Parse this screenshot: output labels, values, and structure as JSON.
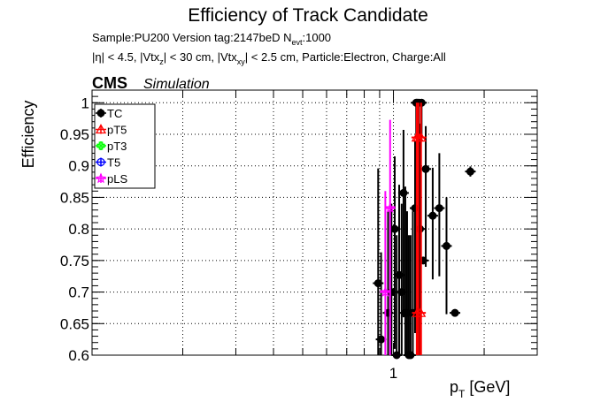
{
  "header": {
    "title": "Efficiency of Track Candidate",
    "subtitle_line1_a": "Sample:PU200   Version tag:2147beD  N",
    "subtitle_line1_sub": "evt",
    "subtitle_line1_b": ":1000",
    "cuts_a": "|η| < 4.5, |Vtx",
    "cuts_sub1": "z",
    "cuts_b": "| < 30 cm, |Vtx",
    "cuts_sub2": "xy",
    "cuts_c": "| < 2.5 cm, Particle:Electron, Charge:All",
    "cms": "CMS",
    "simulation": "Simulation"
  },
  "chart_data": {
    "type": "scatter",
    "xlabel": "p",
    "xlabel_sub": "T",
    "xlabel_unit": " [GeV]",
    "ylabel": "Efficiency",
    "x_scale": "log",
    "xlim": [
      0.1,
      3.0
    ],
    "ylim": [
      0.6,
      1.02
    ],
    "grid": true,
    "legend_position": "top-left",
    "x_tick_labels": [
      {
        "value": 1,
        "label": "1"
      }
    ],
    "y_tick_labels": [
      {
        "value": 0.6,
        "label": "0.6"
      },
      {
        "value": 0.65,
        "label": "0.65"
      },
      {
        "value": 0.7,
        "label": "0.7"
      },
      {
        "value": 0.75,
        "label": "0.75"
      },
      {
        "value": 0.8,
        "label": "0.8"
      },
      {
        "value": 0.85,
        "label": "0.85"
      },
      {
        "value": 0.9,
        "label": "0.9"
      },
      {
        "value": 0.95,
        "label": "0.95"
      },
      {
        "value": 1.0,
        "label": "1"
      }
    ],
    "series": [
      {
        "name": "TC",
        "color": "#000000",
        "marker": "filled-circle",
        "points": [
          {
            "x": 0.89,
            "y": 0.714,
            "yerr_low": 0.114,
            "yerr_high": 0.182
          },
          {
            "x": 0.91,
            "y": 0.625,
            "yerr_low": 0.025,
            "yerr_high": 0.138
          },
          {
            "x": 0.96,
            "y": 0.667,
            "yerr_low": 0.067,
            "yerr_high": 0.161
          },
          {
            "x": 0.985,
            "y": 0.7,
            "yerr_low": 0.1,
            "yerr_high": 0.14
          },
          {
            "x": 1.01,
            "y": 0.8,
            "yerr_low": 0.19,
            "yerr_high": 0.115
          },
          {
            "x": 1.025,
            "y": 0.6,
            "yerr_low": 0.0,
            "yerr_high": 0.19
          },
          {
            "x": 1.045,
            "y": 0.727,
            "yerr_low": 0.127,
            "yerr_high": 0.143
          },
          {
            "x": 1.065,
            "y": 0.7,
            "yerr_low": 0.1,
            "yerr_high": 0.14
          },
          {
            "x": 1.08,
            "y": 0.857,
            "yerr_low": 0.197,
            "yerr_high": 0.1
          },
          {
            "x": 1.095,
            "y": 0.667,
            "yerr_low": 0.067,
            "yerr_high": 0.2
          },
          {
            "x": 1.11,
            "y": 0.667,
            "yerr_low": 0.067,
            "yerr_high": 0.161
          },
          {
            "x": 1.125,
            "y": 0.6,
            "yerr_low": 0.0,
            "yerr_high": 0.19
          },
          {
            "x": 1.14,
            "y": 0.6,
            "yerr_low": 0.0,
            "yerr_high": 0.19
          },
          {
            "x": 1.16,
            "y": 0.667,
            "yerr_low": 0.067,
            "yerr_high": 0.161
          },
          {
            "x": 1.18,
            "y": 0.833,
            "yerr_low": 0.198,
            "yerr_high": 0.107
          },
          {
            "x": 1.19,
            "y": 1.0,
            "yerr_low": 0.055,
            "yerr_high": 0.0
          },
          {
            "x": 1.2,
            "y": 1.0,
            "yerr_low": 0.055,
            "yerr_high": 0.0
          },
          {
            "x": 1.215,
            "y": 1.0,
            "yerr_low": 0.055,
            "yerr_high": 0.0
          },
          {
            "x": 1.225,
            "y": 0.8,
            "yerr_low": 0.2,
            "yerr_high": 0.167
          },
          {
            "x": 1.24,
            "y": 1.0,
            "yerr_low": 0.056,
            "yerr_high": 0.0
          },
          {
            "x": 1.255,
            "y": 0.75,
            "yerr_low": 0.0,
            "yerr_high": 0.0
          },
          {
            "x": 1.28,
            "y": 0.895,
            "yerr_low": 0.155,
            "yerr_high": 0.068
          },
          {
            "x": 1.35,
            "y": 0.821,
            "yerr_low": 0.101,
            "yerr_high": 0.076
          },
          {
            "x": 1.42,
            "y": 0.833,
            "yerr_low": 0.108,
            "yerr_high": 0.087
          },
          {
            "x": 1.5,
            "y": 0.773,
            "yerr_low": 0.108,
            "yerr_high": 0.077
          },
          {
            "x": 1.6,
            "y": 0.667,
            "yerr_low": 0.0,
            "yerr_high": 0.0
          },
          {
            "x": 1.8,
            "y": 0.891,
            "yerr_low": 0.008,
            "yerr_high": 0.008
          }
        ]
      },
      {
        "name": "pT5",
        "color": "#ff0000",
        "marker": "open-triangle",
        "points": [
          {
            "x": 1.195,
            "y": 0.945,
            "yerr_low": 0.345,
            "yerr_high": 0.055
          },
          {
            "x": 1.21,
            "y": 0.945,
            "yerr_low": 0.345,
            "yerr_high": 0.055
          },
          {
            "x": 1.235,
            "y": 0.945,
            "yerr_low": 0.345,
            "yerr_high": 0.055
          },
          {
            "x": 1.2,
            "y": 0.667,
            "yerr_low": 0.067,
            "yerr_high": 0.0
          },
          {
            "x": 1.23,
            "y": 0.667,
            "yerr_low": 0.067,
            "yerr_high": 0.0
          }
        ]
      },
      {
        "name": "pT3",
        "color": "#00ff00",
        "marker": "open-cross",
        "points": []
      },
      {
        "name": "T5",
        "color": "#0000ff",
        "marker": "open-circle",
        "points": []
      },
      {
        "name": "pLS",
        "color": "#ff00ff",
        "marker": "open-star",
        "points": [
          {
            "x": 0.94,
            "y": 0.7,
            "yerr_low": 0.1,
            "yerr_high": 0.16
          },
          {
            "x": 0.975,
            "y": 0.833,
            "yerr_low": 0.233,
            "yerr_high": 0.14
          }
        ]
      }
    ]
  }
}
